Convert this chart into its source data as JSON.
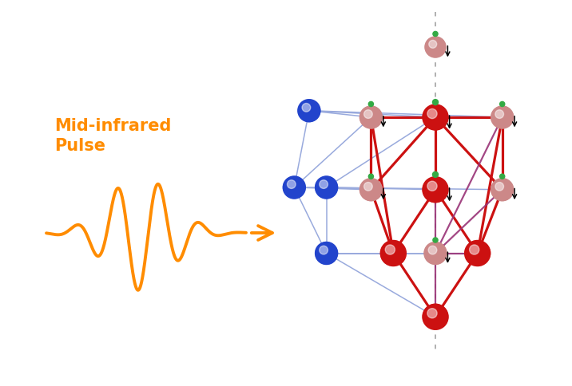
{
  "bg_color": "#ffffff",
  "text_color": "#FF8C00",
  "label": "Mid-infrared\nPulse",
  "label_fontsize": 15,
  "pulse_color": "#FF8C00",
  "arrow_color": "#FF8C00",
  "blue_color": "#2244cc",
  "red_color": "#cc1111",
  "pink_color": "#cc8888",
  "green_color": "#33aa44",
  "purple_color": "#993377",
  "light_blue_color": "#99aadd",
  "dashed_color": "#aaaaaa"
}
